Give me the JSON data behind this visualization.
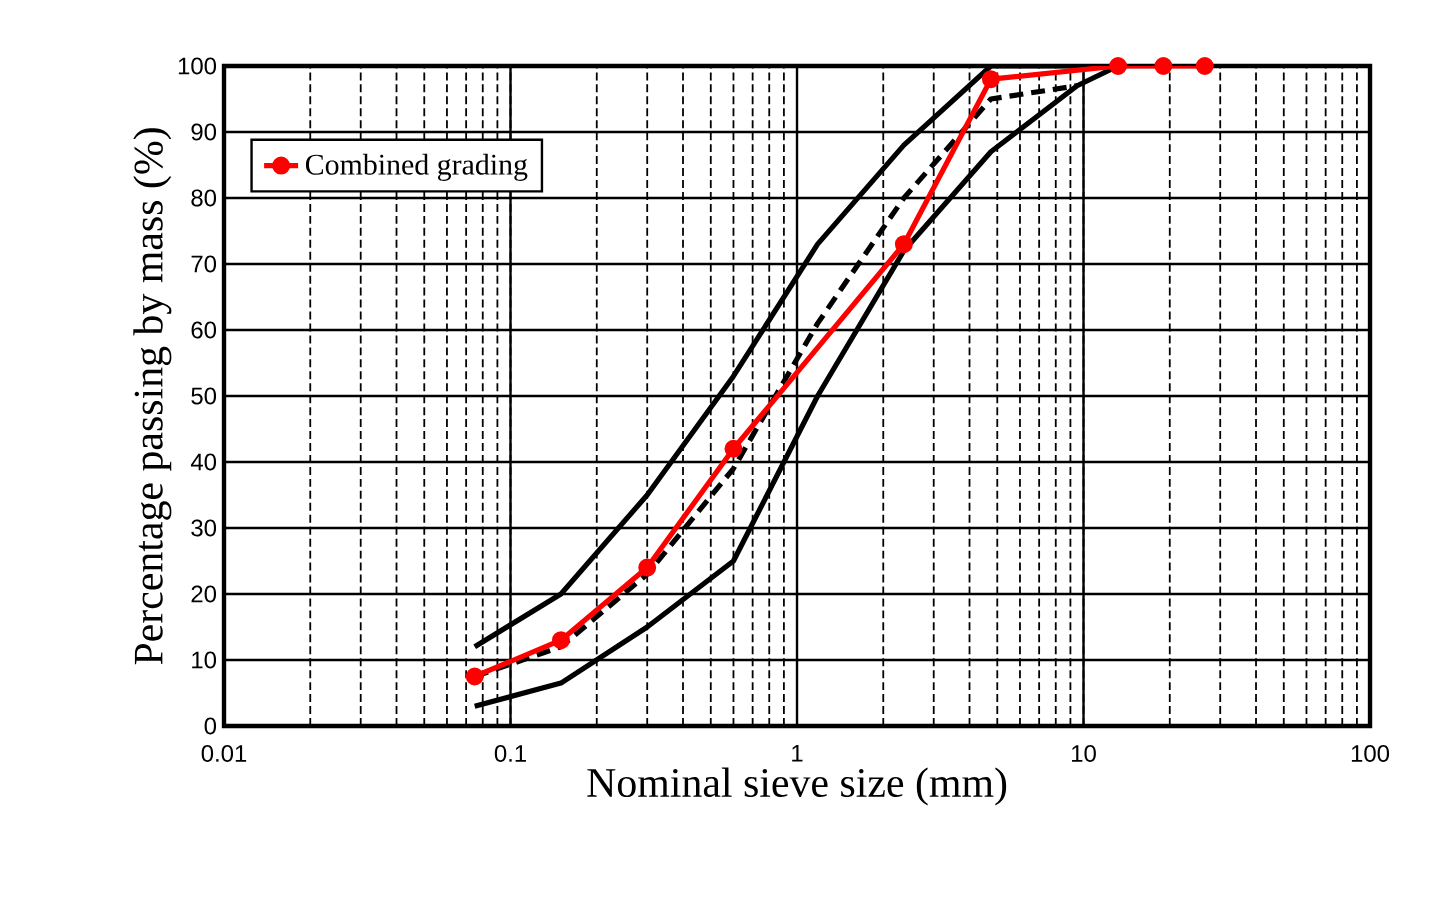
{
  "chart_data": {
    "type": "line",
    "xlabel": "Nominal sieve size (mm)",
    "ylabel": "Percentage passing by mass (%)",
    "log": "x",
    "xlim": [
      0.01,
      100
    ],
    "ylim": [
      0,
      100
    ],
    "xticks": [
      0.01,
      0.1,
      1,
      10,
      100
    ],
    "yticks": [
      0,
      10,
      20,
      30,
      40,
      50,
      60,
      70,
      80,
      90,
      100
    ],
    "grid": true,
    "legend": "top left",
    "series": [
      {
        "color": "#000000",
        "marker": "none",
        "line_style": "solid",
        "x": [
          0.075,
          0.15,
          0.3,
          0.6,
          1.18,
          2.36,
          4.75,
          13.2
        ],
        "values": [
          12,
          20,
          35,
          53,
          73,
          88,
          100,
          100
        ]
      },
      {
        "color": "#000000",
        "marker": "none",
        "line_style": "solid",
        "x": [
          0.075,
          0.15,
          0.3,
          0.6,
          1.18,
          2.36,
          4.75,
          9.5,
          13.2
        ],
        "values": [
          3,
          6.5,
          15,
          25,
          50,
          72,
          87,
          97,
          100
        ]
      },
      {
        "color": "#000000",
        "marker": "none",
        "line_style": "dashed",
        "x": [
          0.075,
          0.15,
          0.3,
          0.6,
          1.18,
          2.36,
          4.75,
          9.5
        ],
        "values": [
          7.5,
          12,
          23,
          39,
          61,
          80,
          95,
          97
        ]
      },
      {
        "name": "Combined grading",
        "color": "#ff0000",
        "marker": "circle",
        "line_style": "solid",
        "x": [
          0.075,
          0.15,
          0.3,
          0.6,
          2.36,
          4.75,
          13.2,
          19,
          26.5
        ],
        "values": [
          7.5,
          13,
          24,
          42,
          73,
          98,
          100,
          100,
          100
        ]
      }
    ]
  }
}
